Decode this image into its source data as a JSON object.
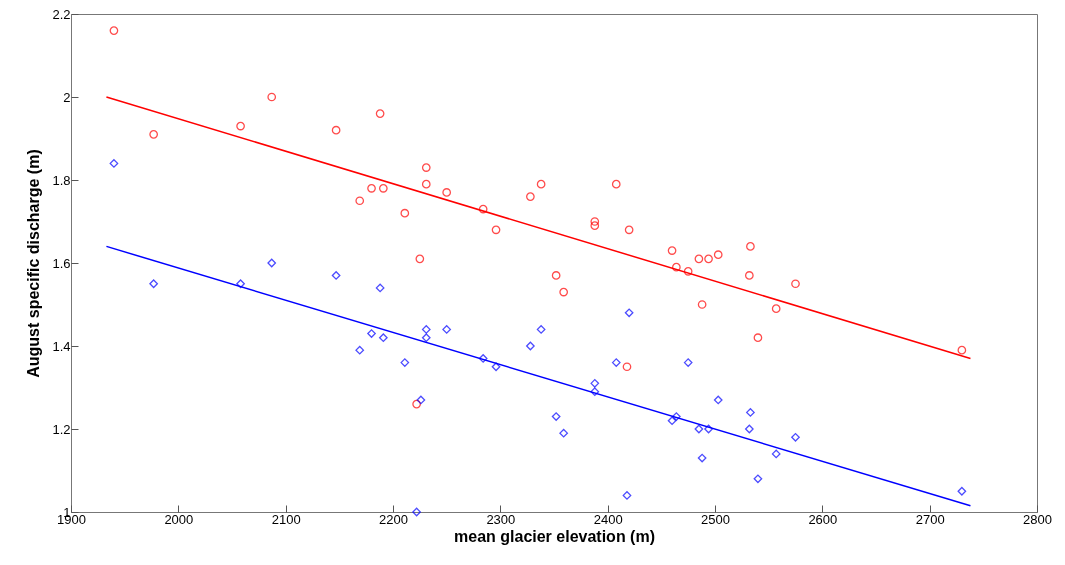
{
  "chart_data": {
    "type": "scatter",
    "xlabel": "mean glacier  elevation (m)",
    "ylabel": "August specific discharge (m)",
    "xlim": [
      1900,
      2800
    ],
    "ylim": [
      1,
      2.2
    ],
    "xticks": [
      1900,
      2000,
      2100,
      2200,
      2300,
      2400,
      2500,
      2600,
      2700,
      2800
    ],
    "yticks": [
      1,
      1.2,
      1.4,
      1.6,
      1.8,
      2,
      2.2
    ],
    "grid": false,
    "series": [
      {
        "type": "scatter",
        "marker": "circle",
        "color": "#ff0000",
        "x": [
          1940,
          1977,
          2058,
          2087,
          2147,
          2188,
          2169,
          2180,
          2191,
          2211,
          2225,
          2231,
          2231,
          2250,
          2284,
          2296,
          2328,
          2338,
          2388,
          2388,
          2408,
          2420,
          2460,
          2464,
          2475,
          2485,
          2494,
          2503,
          2533,
          2352,
          2359,
          2488,
          2532,
          2557,
          2540,
          2418,
          2222,
          2575,
          2730
        ],
        "values": [
          2.16,
          1.91,
          1.93,
          2.0,
          1.92,
          1.96,
          1.75,
          1.78,
          1.78,
          1.72,
          1.61,
          1.83,
          1.79,
          1.77,
          1.73,
          1.68,
          1.76,
          1.79,
          1.7,
          1.69,
          1.79,
          1.68,
          1.63,
          1.59,
          1.58,
          1.61,
          1.61,
          1.62,
          1.64,
          1.57,
          1.53,
          1.5,
          1.57,
          1.49,
          1.42,
          1.35,
          1.26,
          1.55,
          1.39
        ]
      },
      {
        "type": "scatter",
        "marker": "diamond",
        "color": "#0000ff",
        "x": [
          1940,
          2087,
          1977,
          2058,
          2147,
          2188,
          2169,
          2180,
          2191,
          2211,
          2226,
          2222,
          2231,
          2231,
          2250,
          2284,
          2296,
          2328,
          2338,
          2352,
          2359,
          2388,
          2388,
          2408,
          2420,
          2418,
          2460,
          2464,
          2475,
          2485,
          2488,
          2494,
          2503,
          2532,
          2533,
          2540,
          2557,
          2575,
          2730
        ],
        "values": [
          1.84,
          1.6,
          1.55,
          1.55,
          1.57,
          1.54,
          1.39,
          1.43,
          1.42,
          1.36,
          1.27,
          1.0,
          1.44,
          1.42,
          1.44,
          1.37,
          1.35,
          1.4,
          1.44,
          1.23,
          1.19,
          1.31,
          1.29,
          1.36,
          1.48,
          1.04,
          1.22,
          1.23,
          1.36,
          1.2,
          1.13,
          1.2,
          1.27,
          1.2,
          1.24,
          1.08,
          1.14,
          1.18,
          1.05
        ]
      },
      {
        "type": "line",
        "color": "#ff0000",
        "x": [
          1933,
          2738
        ],
        "values": [
          2.0,
          1.37
        ]
      },
      {
        "type": "line",
        "color": "#0000ff",
        "x": [
          1933,
          2738
        ],
        "values": [
          1.64,
          1.015
        ]
      }
    ]
  }
}
